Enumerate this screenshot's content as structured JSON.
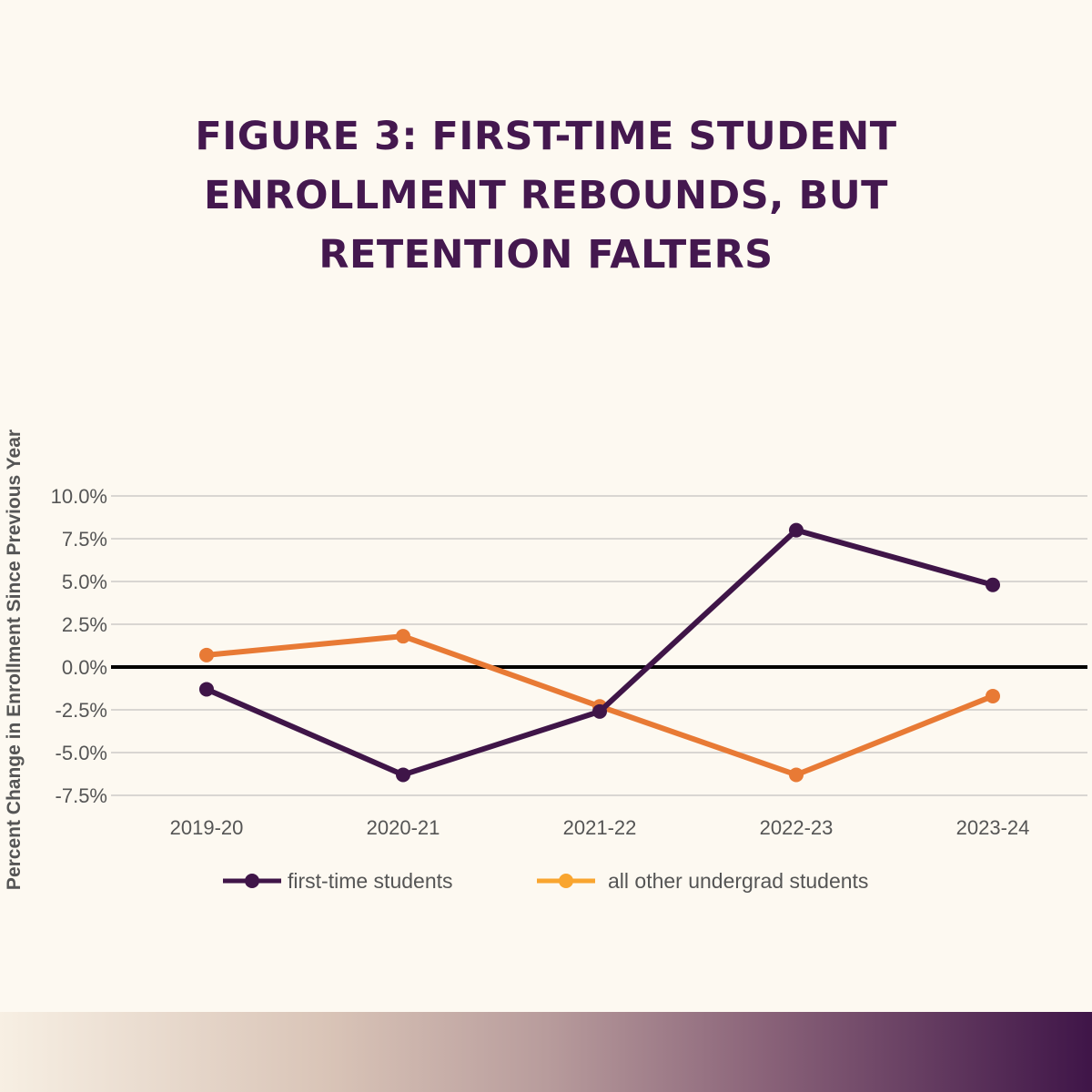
{
  "title_lines": [
    "FIGURE 3: FIRST-TIME STUDENT",
    "ENROLLMENT REBOUNDS, BUT",
    "RETENTION FALTERS"
  ],
  "chart_data": {
    "type": "line",
    "title": "FIGURE 3: FIRST-TIME STUDENT ENROLLMENT REBOUNDS, BUT RETENTION FALTERS",
    "xlabel": "",
    "ylabel": "Percent Change in Enrollment Since Previous Year",
    "categories": [
      "2019-20",
      "2020-21",
      "2021-22",
      "2022-23",
      "2023-24"
    ],
    "ylim": [
      -7.5,
      10.0
    ],
    "yticks": [
      "10.0%",
      "7.5%",
      "5.0%",
      "2.5%",
      "0.0%",
      "-2.5%",
      "-5.0%",
      "-7.5%"
    ],
    "ytick_values": [
      10,
      7.5,
      5,
      2.5,
      0,
      -2.5,
      -5,
      -7.5
    ],
    "grid": true,
    "legend_position": "bottom",
    "series": [
      {
        "name": "first-time students",
        "color": "#3f1548",
        "legend_color": "#3f1548",
        "values": [
          -1.3,
          -6.3,
          -2.6,
          8.0,
          4.8
        ]
      },
      {
        "name": "all other undergrad students",
        "color": "#e87a35",
        "legend_color": "#f9a52f",
        "values": [
          0.7,
          1.8,
          -2.3,
          -6.3,
          -1.7
        ]
      }
    ]
  }
}
